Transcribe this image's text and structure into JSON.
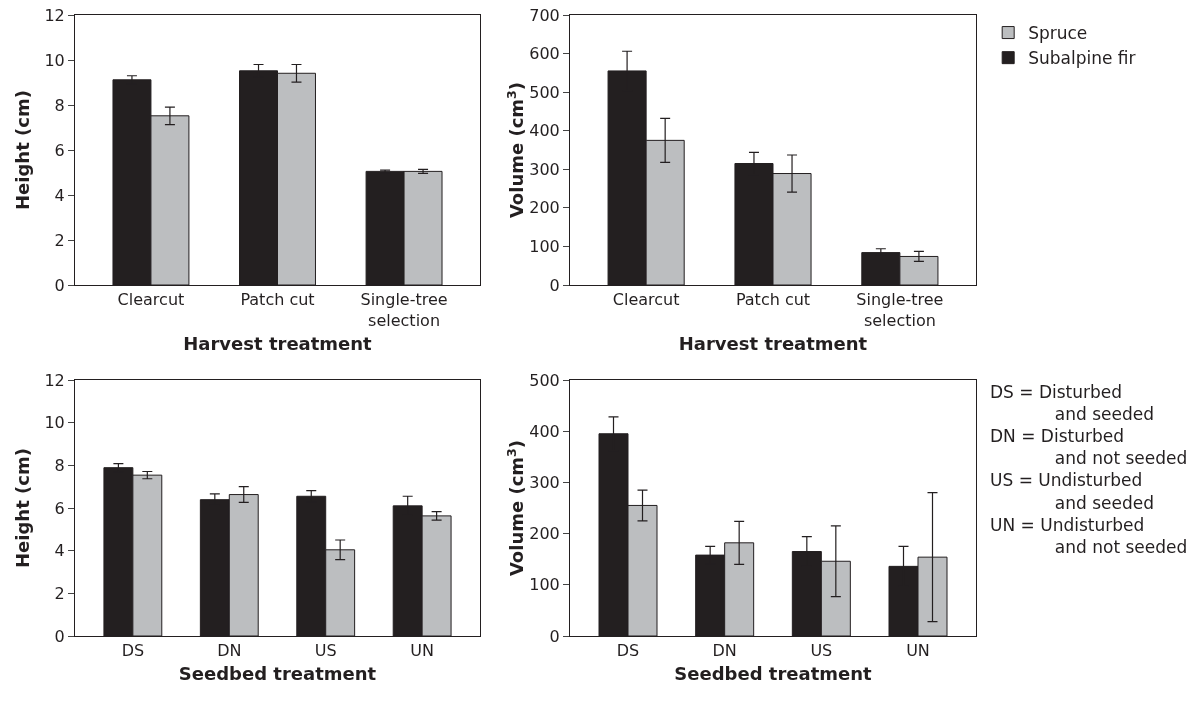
{
  "chart_data": [
    {
      "type": "bar",
      "xlabel": "Harvest treatment",
      "ylabel": "Height (cm)",
      "categories": [
        "Clearcut",
        "Patch cut",
        "Single-tree\nselection"
      ],
      "ylim": [
        0,
        12
      ],
      "yticks": [
        0,
        2,
        4,
        6,
        8,
        10,
        12
      ],
      "legend": false,
      "series": [
        {
          "color": "#231f20",
          "values": [
            9.12,
            9.52,
            5.05
          ],
          "errors": [
            0.18,
            0.28,
            0.06
          ]
        },
        {
          "color": "#bcbec0",
          "values": [
            7.52,
            9.41,
            5.05
          ],
          "errors": [
            0.39,
            0.39,
            0.09
          ]
        }
      ]
    },
    {
      "type": "bar",
      "xlabel": "Harvest treatment",
      "ylabel": "Volume (cm$^{3}$)",
      "categories": [
        "Clearcut",
        "Patch cut",
        "Single-tree\nselection"
      ],
      "ylim": [
        0,
        700
      ],
      "yticks": [
        0,
        100,
        200,
        300,
        400,
        500,
        600,
        700
      ],
      "legend": "right",
      "series": [
        {
          "name": "Subalpine fir",
          "color": "#231f20",
          "values": [
            555,
            315,
            84
          ],
          "errors": [
            51,
            29,
            10
          ]
        },
        {
          "name": "Spruce",
          "color": "#bcbec0",
          "values": [
            375,
            289,
            74
          ],
          "errors": [
            57,
            48,
            13
          ]
        }
      ]
    },
    {
      "type": "bar",
      "xlabel": "Seedbed treatment",
      "ylabel": "Height (cm)",
      "categories": [
        "DS",
        "DN",
        "US",
        "UN"
      ],
      "ylim": [
        0,
        12
      ],
      "yticks": [
        0,
        2,
        4,
        6,
        8,
        10,
        12
      ],
      "legend": false,
      "series": [
        {
          "color": "#231f20",
          "values": [
            7.89,
            6.39,
            6.55,
            6.1
          ],
          "errors": [
            0.19,
            0.27,
            0.26,
            0.45
          ]
        },
        {
          "color": "#bcbec0",
          "values": [
            7.54,
            6.63,
            4.04,
            5.63
          ],
          "errors": [
            0.17,
            0.37,
            0.46,
            0.2
          ]
        }
      ]
    },
    {
      "type": "bar",
      "xlabel": "Seedbed treatment",
      "ylabel": "Volume (cm$^{3}$)",
      "categories": [
        "DS",
        "DN",
        "US",
        "UN"
      ],
      "ylim": [
        0,
        500
      ],
      "yticks": [
        0,
        100,
        200,
        300,
        400,
        500
      ],
      "legend": false,
      "annotations": [
        "DS = Disturbed\n      and seeded\nDN = Disturbed\n      and not seeded\nUS = Undisturbed\n      and seeded\nUN = Undisturbed\n      and not seeded"
      ],
      "series": [
        {
          "color": "#231f20",
          "values": [
            395,
            158,
            165,
            136
          ],
          "errors": [
            33,
            17,
            29,
            39
          ]
        },
        {
          "color": "#bcbec0",
          "values": [
            255,
            182,
            146,
            154
          ],
          "errors": [
            30,
            42,
            69,
            126
          ]
        }
      ]
    }
  ]
}
